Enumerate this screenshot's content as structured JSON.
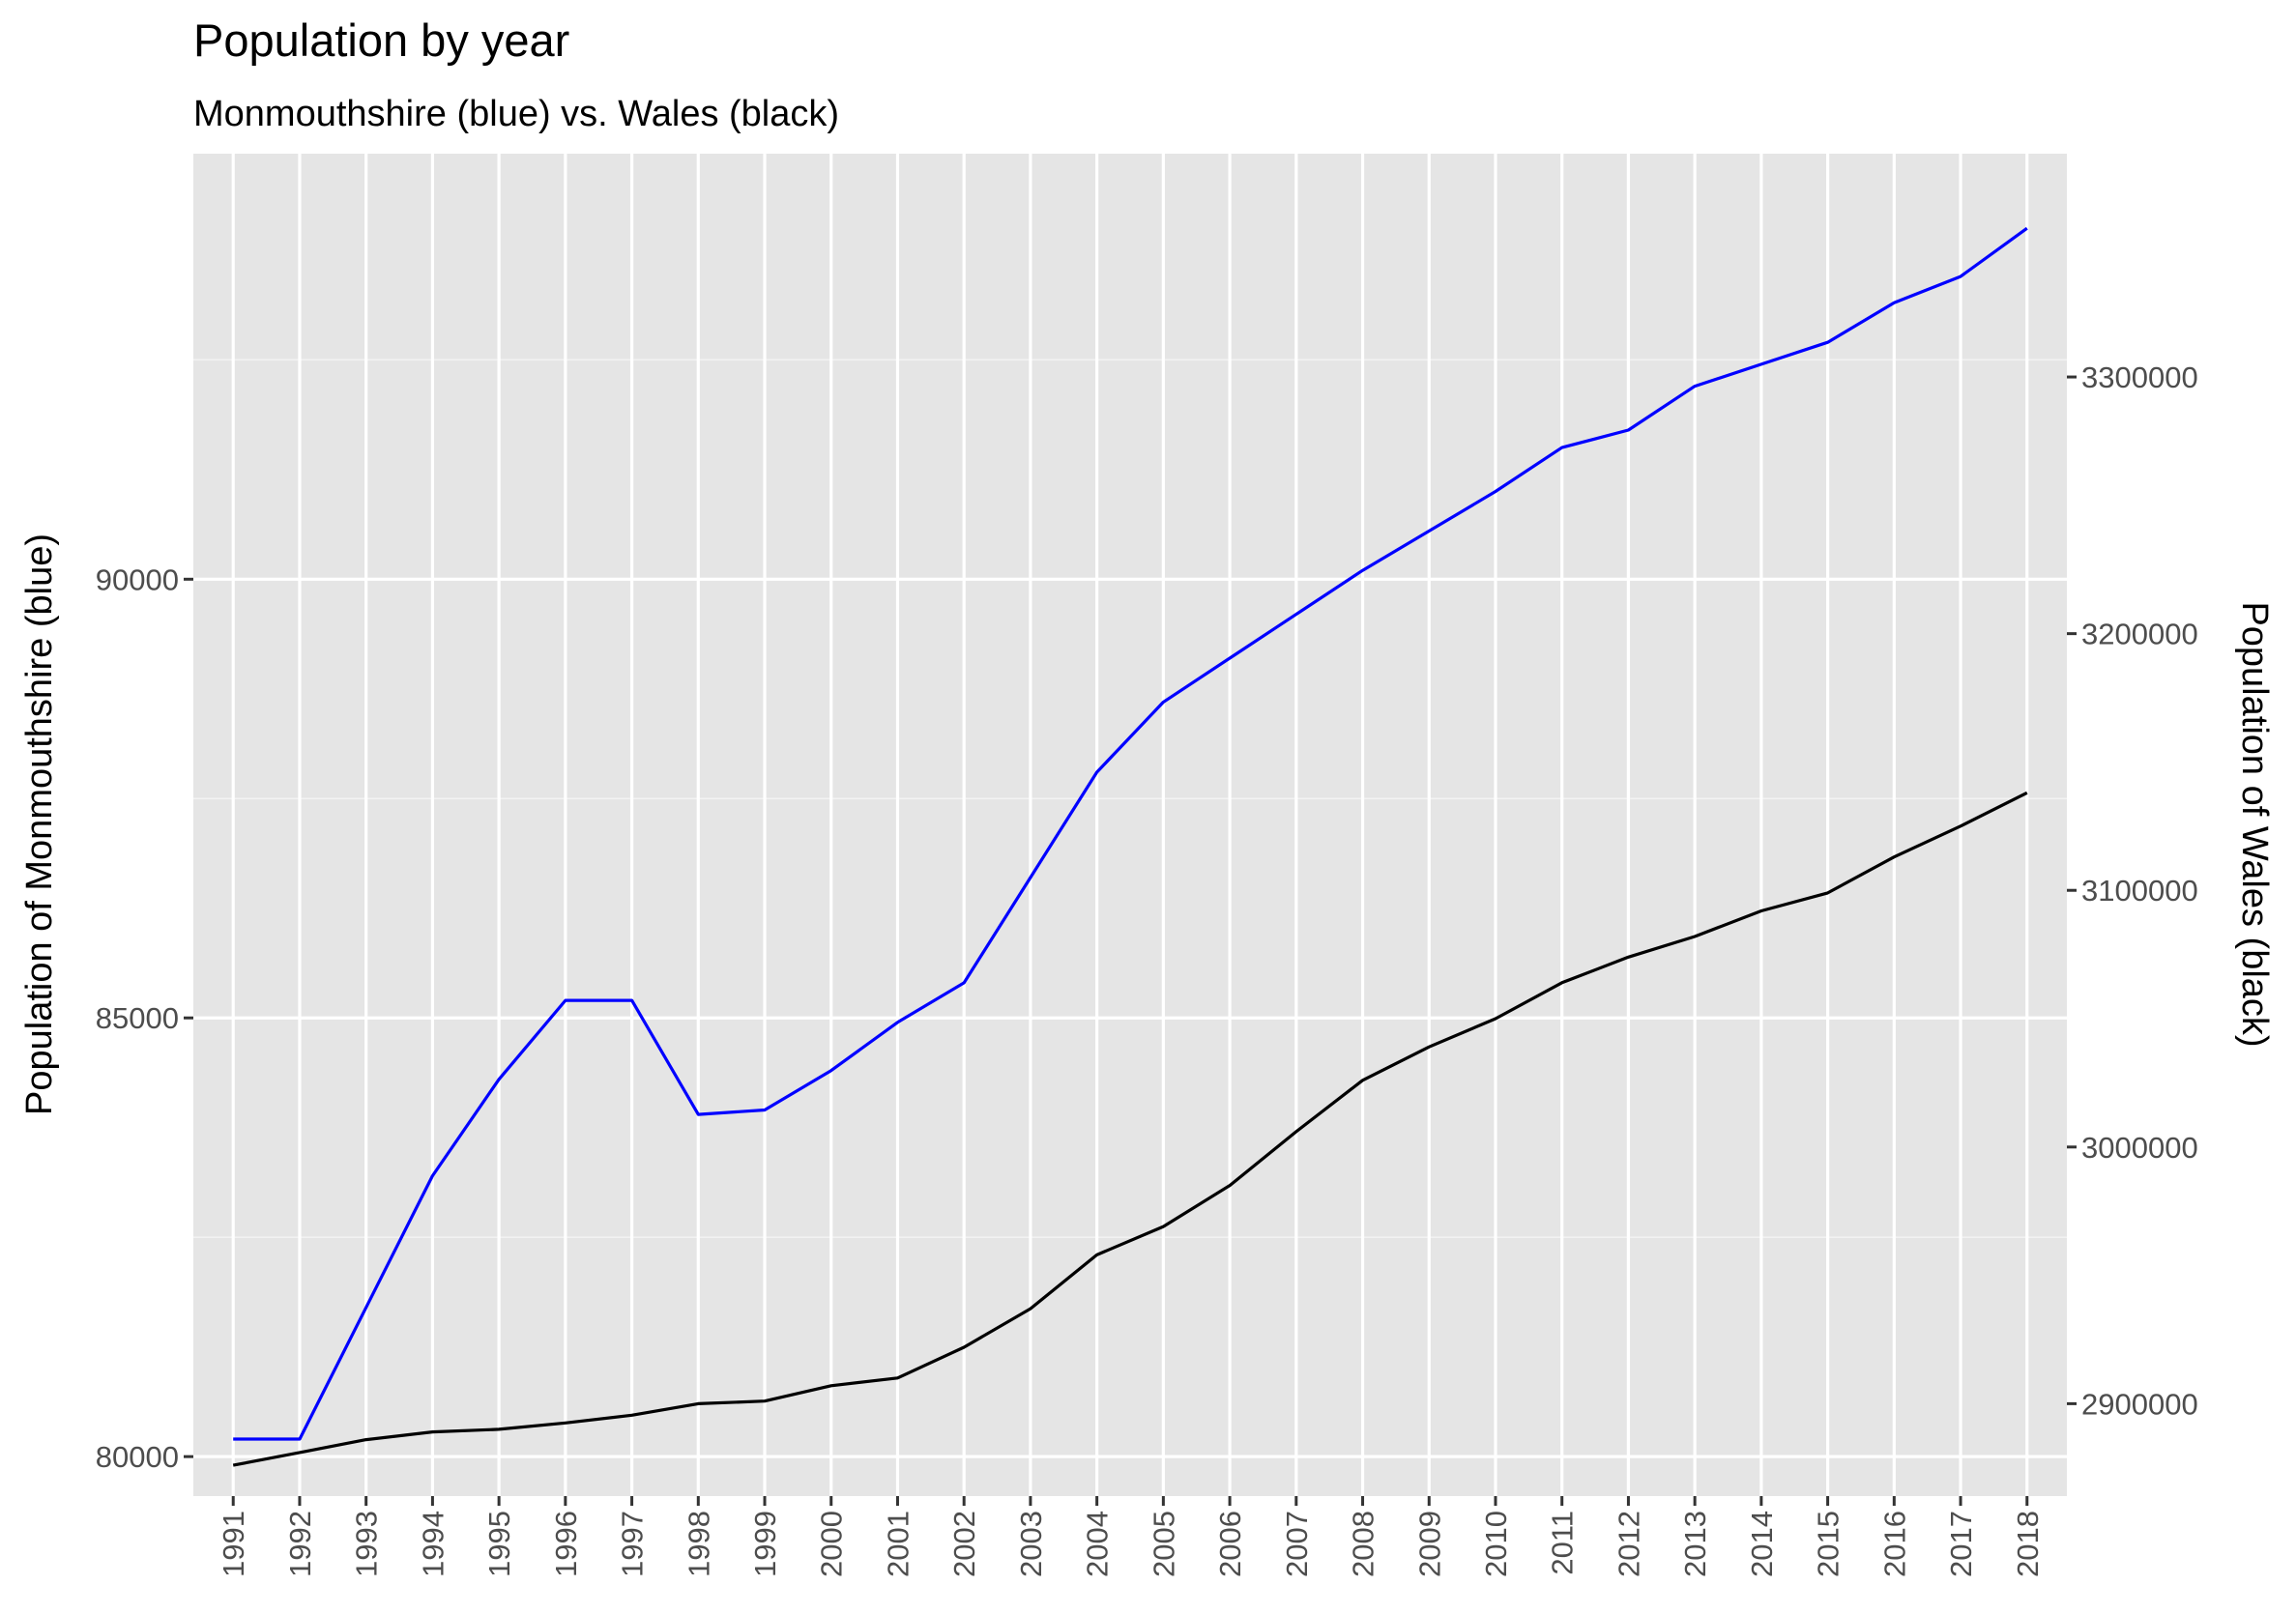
{
  "chart_data": {
    "type": "line",
    "title": "Population by year",
    "subtitle": "Monmouthshire (blue) vs. Wales (black)",
    "xlabel": "",
    "ylabel": "Population of Monmouthshire  (blue)",
    "ylabel_right": "Population of Wales (black)",
    "x": [
      1991,
      1992,
      1993,
      1994,
      1995,
      1996,
      1997,
      1998,
      1999,
      2000,
      2001,
      2002,
      2003,
      2004,
      2005,
      2006,
      2007,
      2008,
      2009,
      2010,
      2011,
      2012,
      2013,
      2014,
      2015,
      2016,
      2017,
      2018
    ],
    "xlim": [
      1990.4,
      2018.6
    ],
    "ylim": [
      79550,
      94850
    ],
    "ylim_right": [
      2864000,
      3387000
    ],
    "yticks": [
      80000,
      85000,
      90000
    ],
    "yticks_right": [
      2900000,
      3000000,
      3100000,
      3200000,
      3300000
    ],
    "grid": true,
    "series": [
      {
        "axis": "left",
        "color": "#0000ff",
        "values": [
          80200,
          80200,
          81700,
          83200,
          84300,
          85200,
          85200,
          83900,
          83950,
          84400,
          84950,
          85400,
          86600,
          87800,
          88600,
          89100,
          89600,
          90100,
          90550,
          91000,
          91500,
          91700,
          92200,
          92450,
          92700,
          93150,
          93450,
          94000
        ]
      },
      {
        "axis": "right",
        "color": "#000000",
        "values": [
          2876000,
          2881000,
          2886000,
          2889000,
          2890000,
          2892500,
          2895500,
          2900000,
          2901000,
          2907000,
          2910000,
          2922000,
          2937000,
          2958000,
          2969000,
          2985000,
          3006000,
          3026000,
          3039000,
          3050000,
          3064000,
          3074000,
          3082000,
          3092000,
          3099000,
          3113000,
          3125000,
          3138000
        ]
      }
    ]
  }
}
